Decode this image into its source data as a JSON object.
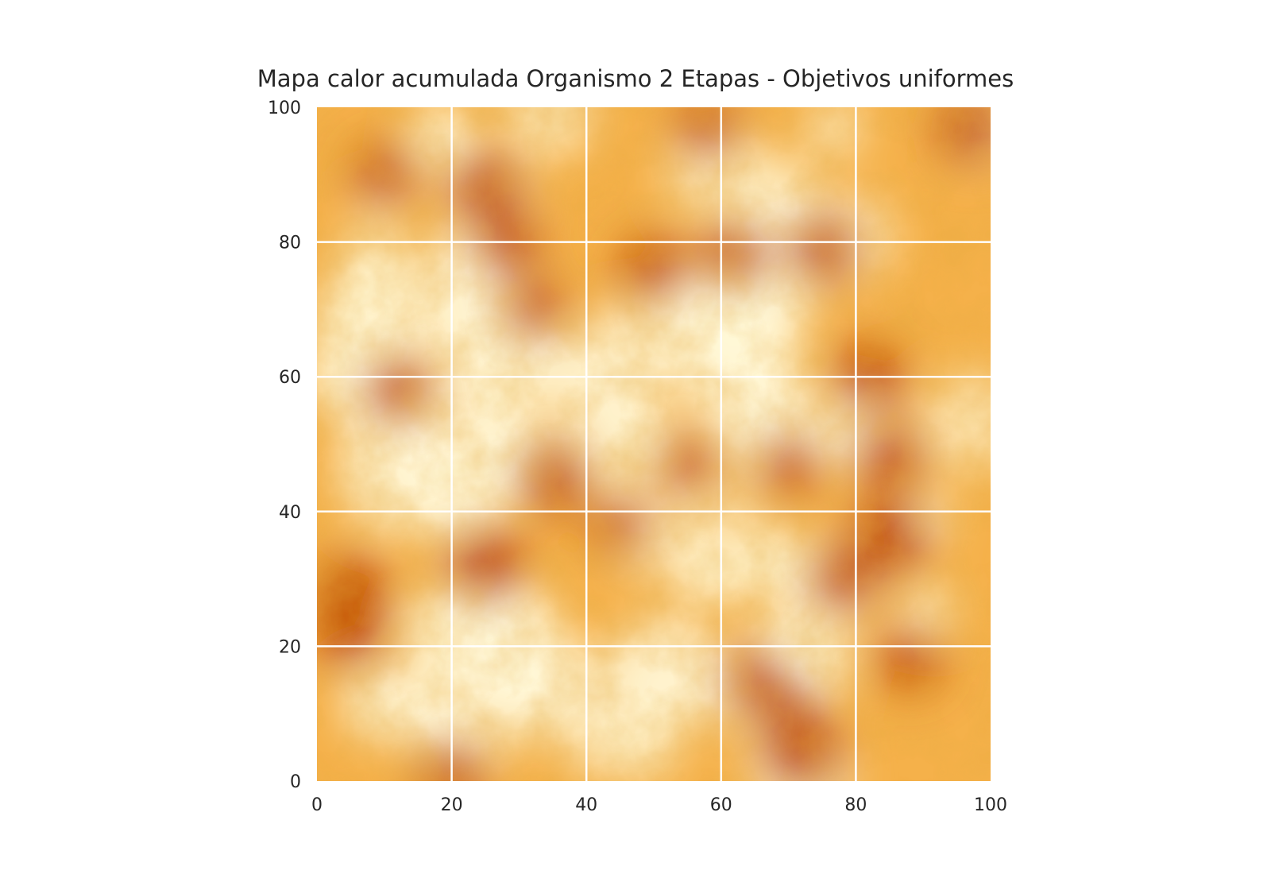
{
  "chart_data": {
    "type": "heatmap",
    "title": "Mapa calor acumulada Organismo 2 Etapas - Objetivos uniformes",
    "xlabel": "",
    "ylabel": "",
    "xlim": [
      0,
      100
    ],
    "ylim": [
      0,
      100
    ],
    "xticks": [
      "0",
      "20",
      "40",
      "60",
      "80",
      "100"
    ],
    "yticks": [
      "0",
      "20",
      "40",
      "60",
      "80",
      "100"
    ],
    "grid": true,
    "grid_color": "#ffffff",
    "colormap": "YlOrBr",
    "colors": {
      "low": "#fff8d8",
      "mid": "#f5b14a",
      "high": "#c04f06"
    },
    "hotspots": [
      {
        "x": 25,
        "y": 88,
        "intensity": 0.9
      },
      {
        "x": 35,
        "y": 45,
        "intensity": 0.9
      },
      {
        "x": 25,
        "y": 32,
        "intensity": 1.0
      },
      {
        "x": 5,
        "y": 28,
        "intensity": 0.9
      },
      {
        "x": 5,
        "y": 22,
        "intensity": 0.85
      },
      {
        "x": 72,
        "y": 4,
        "intensity": 1.0
      },
      {
        "x": 70,
        "y": 10,
        "intensity": 0.8
      },
      {
        "x": 85,
        "y": 36,
        "intensity": 1.0
      },
      {
        "x": 78,
        "y": 30,
        "intensity": 0.85
      },
      {
        "x": 75,
        "y": 79,
        "intensity": 0.9
      },
      {
        "x": 62,
        "y": 78,
        "intensity": 0.8
      },
      {
        "x": 50,
        "y": 76,
        "intensity": 0.8
      },
      {
        "x": 97,
        "y": 97,
        "intensity": 0.85
      },
      {
        "x": 82,
        "y": 60,
        "intensity": 0.85
      },
      {
        "x": 85,
        "y": 48,
        "intensity": 0.85
      },
      {
        "x": 12,
        "y": 58,
        "intensity": 0.8
      },
      {
        "x": 28,
        "y": 80,
        "intensity": 0.8
      },
      {
        "x": 10,
        "y": 90,
        "intensity": 0.7
      },
      {
        "x": 65,
        "y": 15,
        "intensity": 0.75
      },
      {
        "x": 20,
        "y": 1,
        "intensity": 0.75
      },
      {
        "x": 88,
        "y": 18,
        "intensity": 0.7
      },
      {
        "x": 45,
        "y": 38,
        "intensity": 0.6
      },
      {
        "x": 58,
        "y": 97,
        "intensity": 0.7
      },
      {
        "x": 55,
        "y": 47,
        "intensity": 0.6
      },
      {
        "x": 70,
        "y": 47,
        "intensity": 0.7
      },
      {
        "x": 32,
        "y": 70,
        "intensity": 0.7
      }
    ]
  }
}
